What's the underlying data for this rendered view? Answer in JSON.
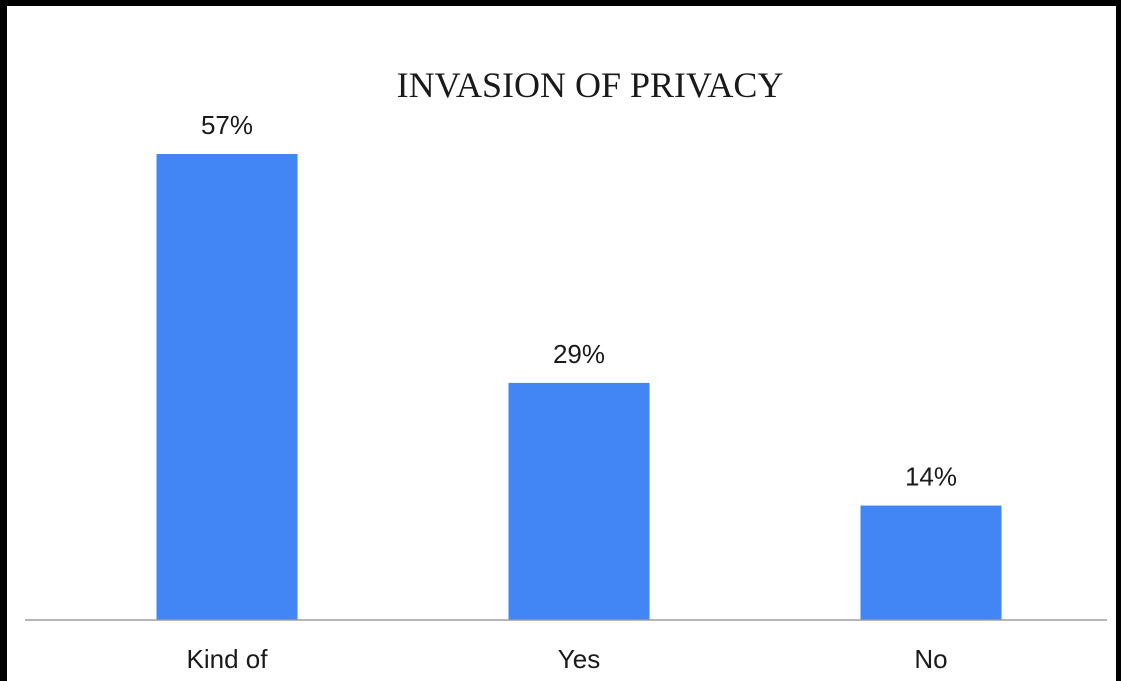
{
  "chart_data": {
    "type": "bar",
    "title": "INVASION OF PRIVACY",
    "categories": [
      "Kind of",
      "Yes",
      "No"
    ],
    "values": [
      57,
      29,
      14
    ],
    "data_labels": [
      "57%",
      "29%",
      "14%"
    ],
    "ylim": [
      0,
      57
    ],
    "grid": false,
    "legend": "none",
    "bar_color": "#4285f4"
  }
}
